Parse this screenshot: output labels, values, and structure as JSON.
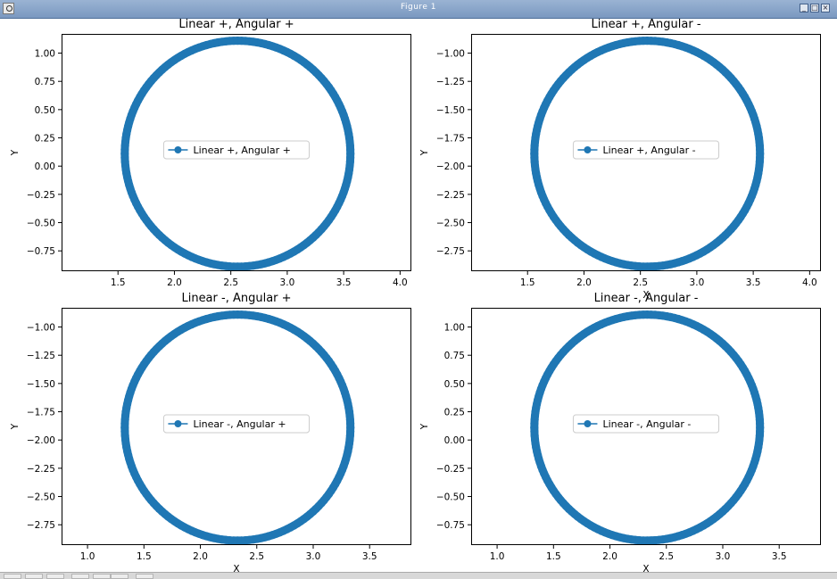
{
  "window": {
    "title": "Figure 1",
    "minimize_label": "_",
    "maximize_label": "□",
    "close_label": "×"
  },
  "colors": {
    "series": "#1f77b4",
    "axes": "#000000",
    "background": "#ffffff"
  },
  "chart_data": [
    {
      "type": "scatter",
      "title": "Linear +, Angular +",
      "xlabel": "",
      "ylabel": "Y",
      "xlim": [
        1.0,
        4.1
      ],
      "ylim": [
        -0.93,
        1.17
      ],
      "xticks": [
        1.5,
        2.0,
        2.5,
        3.0,
        3.5,
        4.0
      ],
      "xtick_labels": [
        "1.5",
        "2.0",
        "2.5",
        "3.0",
        "3.5",
        "4.0"
      ],
      "yticks": [
        1.0,
        0.75,
        0.5,
        0.25,
        0.0,
        -0.25,
        -0.5,
        -0.75
      ],
      "ytick_labels": [
        "1.00",
        "0.75",
        "0.50",
        "0.25",
        "0.00",
        "−0.25",
        "−0.50",
        "−0.75"
      ],
      "legend": {
        "placement": "center",
        "label": "Linear +, Angular +"
      },
      "series": [
        {
          "name": "Linear +, Angular +",
          "center": [
            2.56,
            0.11
          ],
          "radius_x": 1.0,
          "radius_y": 1.0
        }
      ]
    },
    {
      "type": "scatter",
      "title": "Linear +, Angular -",
      "xlabel": "X",
      "ylabel": "Y",
      "xlim": [
        1.0,
        4.1
      ],
      "ylim": [
        -2.93,
        -0.83
      ],
      "xticks": [
        1.5,
        2.0,
        2.5,
        3.0,
        3.5,
        4.0
      ],
      "xtick_labels": [
        "1.5",
        "2.0",
        "2.5",
        "3.0",
        "3.5",
        "4.0"
      ],
      "yticks": [
        -1.0,
        -1.25,
        -1.5,
        -1.75,
        -2.0,
        -2.25,
        -2.5,
        -2.75
      ],
      "ytick_labels": [
        "−1.00",
        "−1.25",
        "−1.50",
        "−1.75",
        "−2.00",
        "−2.25",
        "−2.50",
        "−2.75"
      ],
      "legend": {
        "placement": "center",
        "label": "Linear +, Angular -"
      },
      "series": [
        {
          "name": "Linear +, Angular -",
          "center": [
            2.56,
            -1.89
          ],
          "radius_x": 1.0,
          "radius_y": 1.0
        }
      ]
    },
    {
      "type": "scatter",
      "title": "Linear -, Angular +",
      "xlabel": "X",
      "ylabel": "Y",
      "xlim": [
        0.77,
        3.87
      ],
      "ylim": [
        -2.93,
        -0.83
      ],
      "xticks": [
        1.0,
        1.5,
        2.0,
        2.5,
        3.0,
        3.5
      ],
      "xtick_labels": [
        "1.0",
        "1.5",
        "2.0",
        "2.5",
        "3.0",
        "3.5"
      ],
      "yticks": [
        -1.0,
        -1.25,
        -1.5,
        -1.75,
        -2.0,
        -2.25,
        -2.5,
        -2.75
      ],
      "ytick_labels": [
        "−1.00",
        "−1.25",
        "−1.50",
        "−1.75",
        "−2.00",
        "−2.25",
        "−2.50",
        "−2.75"
      ],
      "legend": {
        "placement": "center",
        "label": "Linear -, Angular +"
      },
      "series": [
        {
          "name": "Linear -, Angular +",
          "center": [
            2.33,
            -1.89
          ],
          "radius_x": 1.0,
          "radius_y": 1.0
        }
      ]
    },
    {
      "type": "scatter",
      "title": "Linear -, Angular -",
      "xlabel": "X",
      "ylabel": "Y",
      "xlim": [
        0.77,
        3.87
      ],
      "ylim": [
        -0.93,
        1.17
      ],
      "xticks": [
        1.0,
        1.5,
        2.0,
        2.5,
        3.0,
        3.5
      ],
      "xtick_labels": [
        "1.0",
        "1.5",
        "2.0",
        "2.5",
        "3.0",
        "3.5"
      ],
      "yticks": [
        1.0,
        0.75,
        0.5,
        0.25,
        0.0,
        -0.25,
        -0.5,
        -0.75
      ],
      "ytick_labels": [
        "1.00",
        "0.75",
        "0.50",
        "0.25",
        "0.00",
        "−0.25",
        "−0.50",
        "−0.75"
      ],
      "legend": {
        "placement": "center",
        "label": "Linear -, Angular -"
      },
      "series": [
        {
          "name": "Linear -, Angular -",
          "center": [
            2.33,
            0.11
          ],
          "radius_x": 1.0,
          "radius_y": 1.0
        }
      ]
    }
  ]
}
